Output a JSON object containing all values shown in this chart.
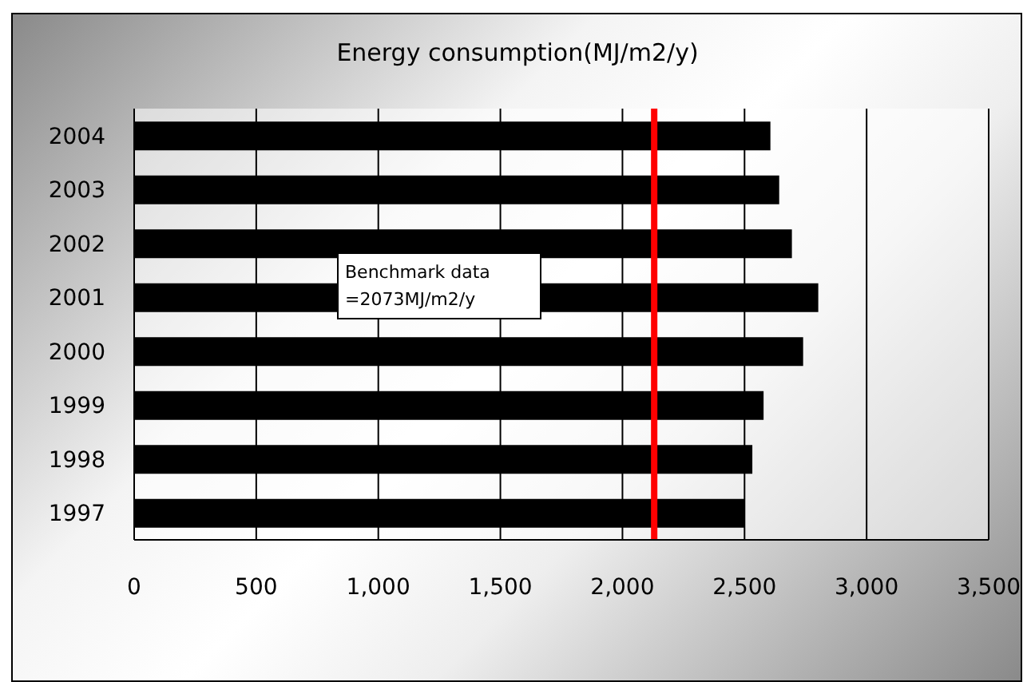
{
  "chart_data": {
    "type": "bar",
    "orientation": "horizontal",
    "title": "Energy consumption(MJ/m2/y)",
    "categories": [
      "2004",
      "2003",
      "2002",
      "2001",
      "2000",
      "1999",
      "1998",
      "1997"
    ],
    "values": [
      2606,
      2642,
      2694,
      2802,
      2740,
      2578,
      2532,
      2500
    ],
    "color": "#000000",
    "xlim": [
      0,
      3500
    ],
    "xticks": [
      {
        "value": 0,
        "label": "0"
      },
      {
        "value": 500,
        "label": "500"
      },
      {
        "value": 1000,
        "label": "1,000"
      },
      {
        "value": 1500,
        "label": "1,500"
      },
      {
        "value": 2000,
        "label": "2,000"
      },
      {
        "value": 2500,
        "label": "2,500"
      },
      {
        "value": 3000,
        "label": "3,000"
      },
      {
        "value": 3500,
        "label": "3,500"
      }
    ],
    "grid": "x",
    "ref_lines": [
      {
        "axis": "x",
        "value": 2130,
        "color": "#ff0000"
      }
    ],
    "annotations": [
      "Benchmark data\n=2073MJ/m2/y"
    ]
  }
}
